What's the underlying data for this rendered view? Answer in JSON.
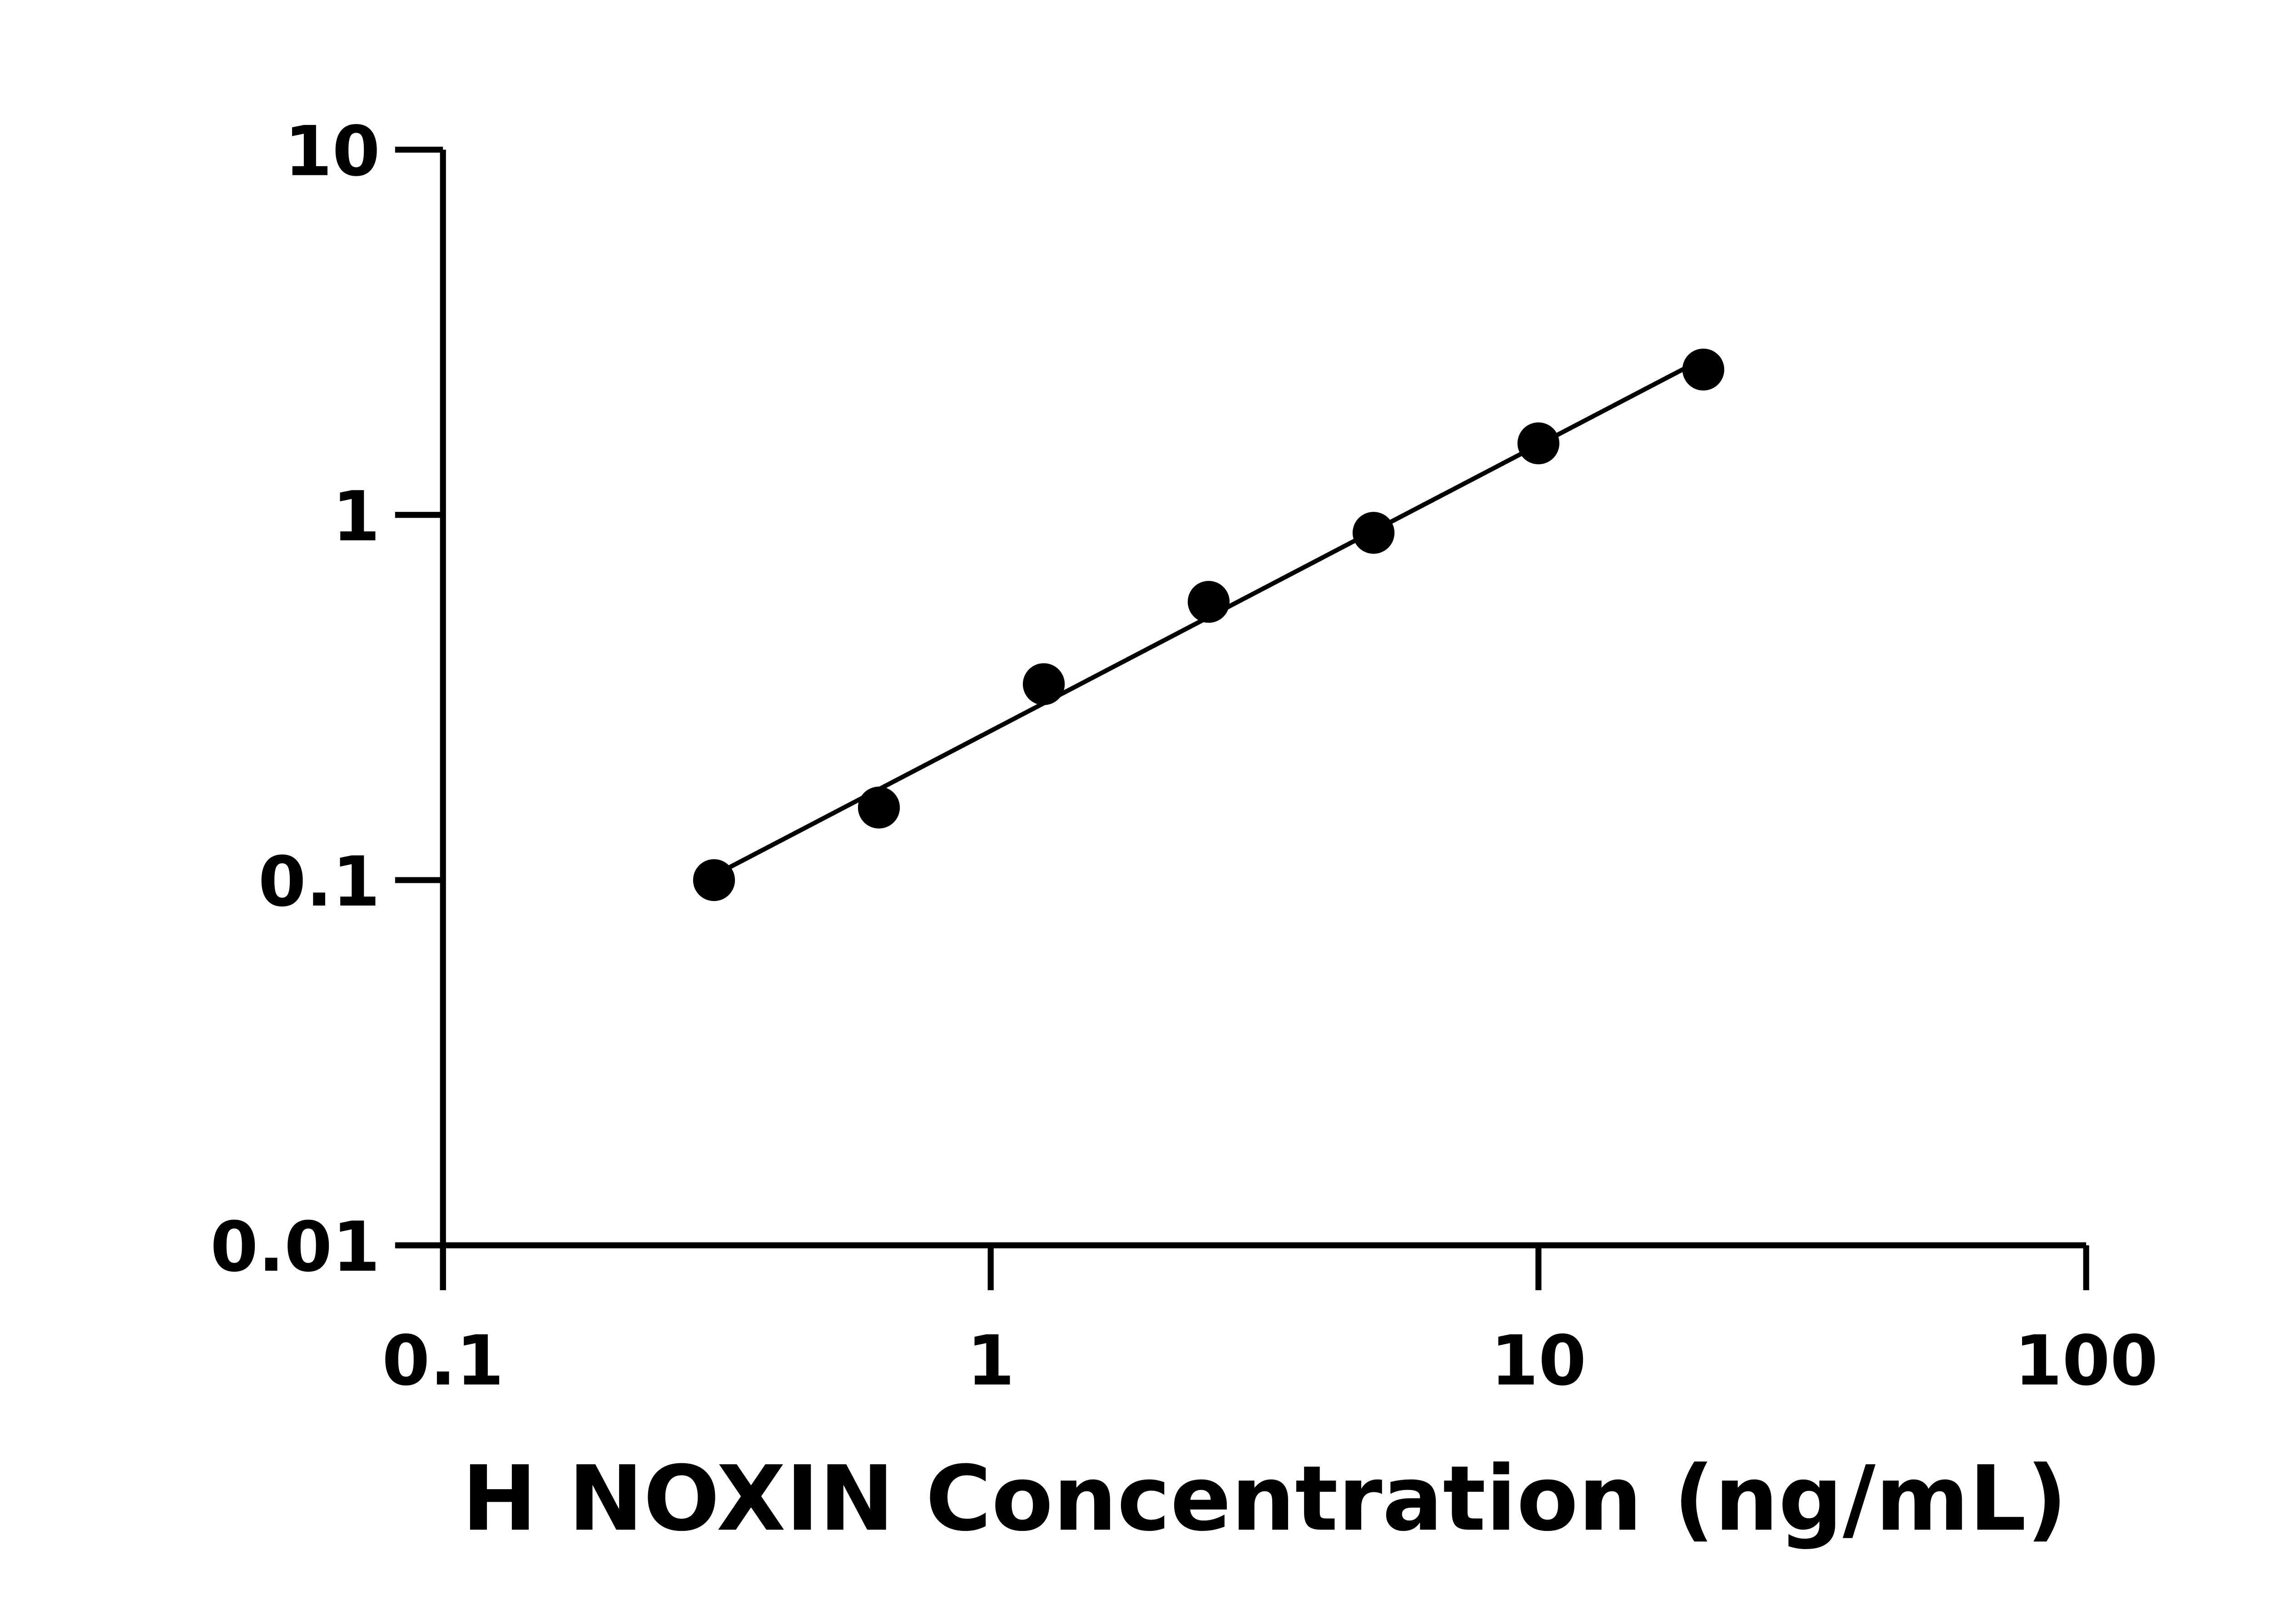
{
  "chart_data": {
    "type": "scatter",
    "title": "",
    "xlabel": "H NOXIN Concentration (ng/mL)",
    "ylabel": "",
    "xscale": "log",
    "yscale": "log",
    "xlim": [
      0.1,
      100
    ],
    "ylim": [
      0.01,
      10
    ],
    "x_ticks": [
      "0.1",
      "1",
      "10",
      "100"
    ],
    "y_ticks": [
      "0.01",
      "0.1",
      "1",
      "10"
    ],
    "grid": false,
    "legend": "none",
    "series": [
      {
        "x": [
          0.3125,
          0.625,
          1.25,
          2.5,
          5,
          10,
          20
        ],
        "y": [
          0.1,
          0.158,
          0.344,
          0.578,
          0.893,
          1.57,
          2.5
        ],
        "marker": "filled-circle",
        "color": "#000000",
        "fit_line": "log-log linear"
      }
    ]
  }
}
